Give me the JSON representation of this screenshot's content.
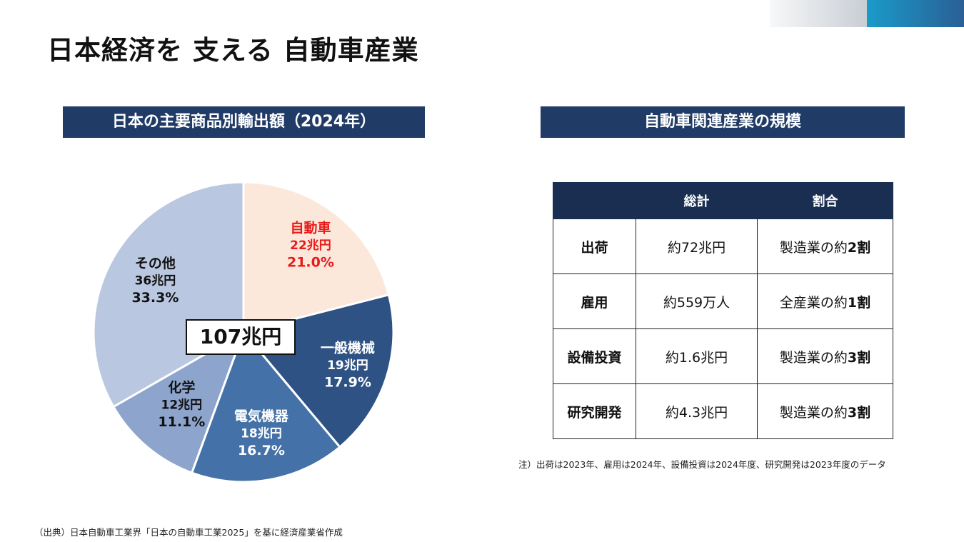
{
  "title": "日本経済を 支える 自動車産業",
  "left_header": "日本の主要商品別輸出額（2024年）",
  "right_header": "自動車関連産業の規模",
  "total_label": "107兆円",
  "colors": {
    "header_bg": "#1f3b66",
    "table_header_bg": "#1a2e52",
    "highlight_red": "#e81a1a"
  },
  "chart_data": {
    "type": "pie",
    "title": "日本の主要商品別輸出額（2024年）",
    "total": "107兆円",
    "slices": [
      {
        "label": "自動車",
        "amount": "22兆円",
        "percent": "21.0%",
        "value": 21.0,
        "color": "#fce8da",
        "text_color": "#e81a1a"
      },
      {
        "label": "一般機械",
        "amount": "19兆円",
        "percent": "17.9%",
        "value": 17.9,
        "color": "#2f5285",
        "text_color": "#ffffff"
      },
      {
        "label": "電気機器",
        "amount": "18兆円",
        "percent": "16.7%",
        "value": 16.7,
        "color": "#4472a8",
        "text_color": "#ffffff"
      },
      {
        "label": "化学",
        "amount": "12兆円",
        "percent": "11.1%",
        "value": 11.1,
        "color": "#8da4cc",
        "text_color": "#111111"
      },
      {
        "label": "その他",
        "amount": "36兆円",
        "percent": "33.3%",
        "value": 33.3,
        "color": "#b9c7e0",
        "text_color": "#111111"
      }
    ]
  },
  "table": {
    "headers": [
      "",
      "総計",
      "割合"
    ],
    "rows": [
      {
        "label": "出荷",
        "total": "約72兆円",
        "ratio_prefix": "製造業の約",
        "ratio_bold": "2割"
      },
      {
        "label": "雇用",
        "total": "約559万人",
        "ratio_prefix": "全産業の約",
        "ratio_bold": "1割"
      },
      {
        "label": "設備投資",
        "total": "約1.6兆円",
        "ratio_prefix": "製造業の約",
        "ratio_bold": "3割"
      },
      {
        "label": "研究開発",
        "total": "約4.3兆円",
        "ratio_prefix": "製造業の約",
        "ratio_bold": "3割"
      }
    ]
  },
  "note": "注）出荷は2023年、雇用は2024年、設備投資は2024年度、研究開発は2023年度のデータ",
  "source": "（出典）日本自動車工業界「日本の自動車工業2025」を基に経済産業省作成"
}
